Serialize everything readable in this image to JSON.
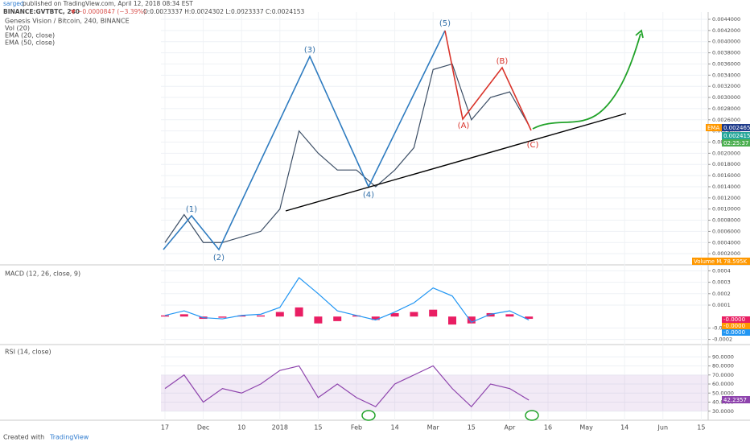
{
  "header": {
    "author": "sarged",
    "published": "published on TradingView.com, April 12, 2018 08:34 EST",
    "symbol": "BINANCE:GVTBTC, 240",
    "change": "▼ −0.0000847 (−3.39%)",
    "ohlc": "O:0.0023337 H:0.0024302 L:0.0023337 C:0.0024153"
  },
  "chart_data": [
    {
      "type": "line",
      "title": "Genesis Vision / Bitcoin, 240, BINANCE",
      "indicators": [
        "Vol (20)",
        "EMA (20, close)",
        "EMA (50, close)"
      ],
      "categories": [
        "17",
        null,
        "Dec",
        null,
        "10",
        null,
        "2018",
        null,
        "15",
        null,
        "Feb",
        null,
        "14",
        null,
        "Mar",
        null,
        "15",
        null,
        "Apr",
        null,
        "16",
        null,
        "May",
        null,
        "14",
        null,
        "Jun",
        null,
        "15",
        null
      ],
      "values": [
        0.0004,
        0.0009,
        0.0004,
        0.0004,
        0.0005,
        0.0006,
        0.001,
        0.0024,
        0.002,
        0.0017,
        0.0017,
        0.0014,
        0.0017,
        0.0021,
        0.0035,
        0.0036,
        0.0026,
        0.003,
        0.0031,
        0.0025,
        null,
        null,
        null,
        null,
        null,
        null,
        null,
        null,
        null,
        null
      ],
      "color": "#3d4f66",
      "ylim": [
        0,
        0.00453
      ],
      "yticks": [
        {
          "value": 0.0002,
          "label": "0.0002000"
        },
        {
          "value": 0.0004,
          "label": "0.0004000"
        },
        {
          "value": 0.0006,
          "label": "0.0006000"
        },
        {
          "value": 0.0008,
          "label": "0.0008000"
        },
        {
          "value": 0.001,
          "label": "0.0010000"
        },
        {
          "value": 0.0012,
          "label": "0.0012000"
        },
        {
          "value": 0.0014,
          "label": "0.0014000"
        },
        {
          "value": 0.0016,
          "label": "0.0016000"
        },
        {
          "value": 0.0018,
          "label": "0.0018000"
        },
        {
          "value": 0.002,
          "label": "0.0020000"
        },
        {
          "value": 0.0022,
          "label": "0.0022000"
        },
        {
          "value": 0.0024,
          "label": "0.0024000"
        },
        {
          "value": 0.0026,
          "label": "0.0026000"
        },
        {
          "value": 0.0028,
          "label": "0.0028000"
        },
        {
          "value": 0.003,
          "label": "0.0030000"
        },
        {
          "value": 0.0032,
          "label": "0.0032000"
        },
        {
          "value": 0.0034,
          "label": "0.0034000"
        },
        {
          "value": 0.0036,
          "label": "0.0036000"
        },
        {
          "value": 0.0038,
          "label": "0.0038000"
        },
        {
          "value": 0.004,
          "label": "0.0040000"
        },
        {
          "value": 0.0042,
          "label": "0.0042000"
        },
        {
          "value": 0.0044,
          "label": "0.0044000"
        }
      ],
      "grid": true,
      "annotations": [
        "(1)",
        "(2)",
        "(3)",
        "(4)",
        "(5)",
        "(A)",
        "(B)",
        "(C)"
      ],
      "price_tags": [
        "EMA",
        "0.0024650",
        "0.0024153",
        "02:25:37",
        "Volume MA",
        "78.595K"
      ]
    },
    {
      "type": "macd",
      "title": "MACD (12, 26, close, 9)",
      "values": [
        1e-05,
        5e-05,
        -1e-05,
        -2e-05,
        1e-05,
        2e-05,
        8e-05,
        0.00034,
        0.0002,
        5e-05,
        1e-05,
        -3e-05,
        4e-05,
        0.00012,
        0.00025,
        0.00018,
        -5e-05,
        2e-05,
        5e-05,
        -3e-05
      ],
      "histogram": [
        1e-05,
        2e-05,
        -2e-05,
        -1e-05,
        1e-05,
        1e-05,
        4e-05,
        8e-05,
        -6e-05,
        -4e-05,
        1e-05,
        -3e-05,
        3e-05,
        4e-05,
        6e-05,
        -7e-05,
        -6e-05,
        3e-05,
        2e-05,
        -2e-05
      ],
      "color": "#2196f3",
      "histogram_color": "#e91e63",
      "ylim": [
        -0.000245,
        0.000445
      ],
      "yticks": [
        -0.0002,
        -0.0001,
        0.0001,
        0.0002,
        0.0003,
        0.0004
      ],
      "grid": true,
      "annotations": [
        "-0.0000",
        "-0.0000",
        "-0.0000"
      ]
    },
    {
      "type": "rsi",
      "title": "RSI (14, close)",
      "values": [
        55,
        70,
        40,
        55,
        50,
        60,
        75,
        80,
        45,
        60,
        45,
        35,
        60,
        70,
        80,
        55,
        35,
        60,
        55,
        42.2357
      ],
      "color": "#8e44ad",
      "ylim": [
        20,
        100
      ],
      "band": [
        30,
        70
      ],
      "yticks": [
        {
          "value": 30,
          "label": "30.0000"
        },
        {
          "value": 40,
          "label": "40.0000"
        },
        {
          "value": 50,
          "label": "50.0000"
        },
        {
          "value": 60,
          "label": "60.0000"
        },
        {
          "value": 70,
          "label": "70.0000"
        },
        {
          "value": 80,
          "label": "80.0000"
        },
        {
          "value": 90,
          "label": "90.0000"
        }
      ],
      "grid": true
    }
  ],
  "footer": {
    "created": "Created with",
    "brand": "TradingView"
  }
}
